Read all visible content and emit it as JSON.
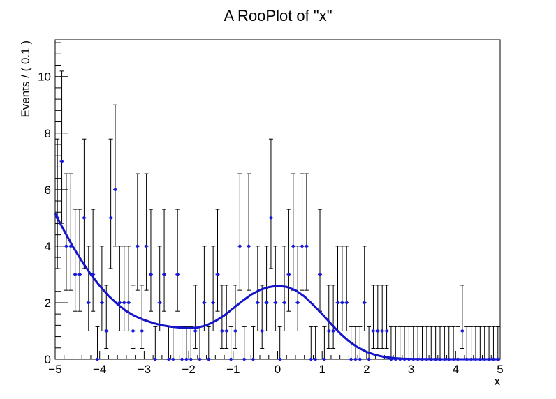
{
  "chart_data": {
    "type": "scatter",
    "title": "A RooPlot of \"x\"",
    "xlabel": "x",
    "ylabel": "Events / ( 0.1 )",
    "xlim": [
      -5,
      5
    ],
    "ylim": [
      0,
      11.3
    ],
    "x_ticks": [
      -5,
      -4,
      -3,
      -2,
      -1,
      0,
      1,
      2,
      3,
      4,
      5
    ],
    "y_ticks": [
      0,
      2,
      4,
      6,
      8,
      10
    ],
    "x_tick_labels": [
      "−5",
      "−4",
      "−3",
      "−2",
      "−1",
      "0",
      "1",
      "2",
      "3",
      "4",
      "5"
    ],
    "y_tick_labels": [
      "0",
      "2",
      "4",
      "6",
      "8",
      "10"
    ],
    "grid": false,
    "legend": "none",
    "colors": {
      "data": "#1a1ad6",
      "errorbar": "#000000",
      "curve": "#1414c8",
      "frame": "#000000"
    },
    "series": [
      {
        "type": "points_with_errors",
        "x_centers": [
          -4.95,
          -4.85,
          -4.75,
          -4.65,
          -4.55,
          -4.45,
          -4.35,
          -4.25,
          -4.15,
          -4.05,
          -3.95,
          -3.85,
          -3.75,
          -3.65,
          -3.55,
          -3.45,
          -3.35,
          -3.25,
          -3.15,
          -3.05,
          -2.95,
          -2.85,
          -2.75,
          -2.65,
          -2.55,
          -2.45,
          -2.35,
          -2.25,
          -2.15,
          -2.05,
          -1.95,
          -1.85,
          -1.75,
          -1.65,
          -1.55,
          -1.45,
          -1.35,
          -1.25,
          -1.15,
          -1.05,
          -0.95,
          -0.85,
          -0.75,
          -0.65,
          -0.55,
          -0.45,
          -0.35,
          -0.25,
          -0.15,
          -0.05,
          0.05,
          0.15,
          0.25,
          0.35,
          0.45,
          0.55,
          0.65,
          0.75,
          0.85,
          0.95,
          1.05,
          1.15,
          1.25,
          1.35,
          1.45,
          1.55,
          1.65,
          1.75,
          1.85,
          1.95,
          2.05,
          2.15,
          2.25,
          2.35,
          2.45,
          2.55,
          2.65,
          2.75,
          2.85,
          2.95,
          3.05,
          3.15,
          3.25,
          3.35,
          3.45,
          3.55,
          3.65,
          3.75,
          3.85,
          3.95,
          4.05,
          4.15,
          4.25,
          4.35,
          4.45,
          4.55,
          4.65,
          4.75,
          4.85,
          4.95
        ],
        "counts": [
          5,
          7,
          4,
          4,
          3,
          3,
          5,
          2,
          3,
          0,
          2,
          1,
          5,
          6,
          2,
          2,
          2,
          1,
          4,
          1,
          4,
          3,
          0,
          2,
          3,
          0,
          0,
          3,
          0,
          0,
          0,
          1,
          0,
          2,
          0,
          2,
          3,
          1,
          1,
          0,
          1,
          4,
          0,
          4,
          0,
          2,
          1,
          2,
          5,
          2,
          0,
          2,
          3,
          4,
          2,
          4,
          4,
          0,
          0,
          3,
          0,
          1,
          1,
          2,
          2,
          2,
          0,
          0,
          0,
          2,
          0,
          1,
          1,
          1,
          1,
          0,
          0,
          0,
          0,
          0,
          0,
          0,
          0,
          0,
          0,
          0,
          0,
          0,
          0,
          0,
          0,
          1,
          0,
          0,
          0,
          0,
          0,
          0,
          0,
          0
        ]
      },
      {
        "type": "curve",
        "x": [
          -5.0,
          -4.8,
          -4.6,
          -4.4,
          -4.2,
          -4.0,
          -3.8,
          -3.6,
          -3.4,
          -3.2,
          -3.0,
          -2.8,
          -2.6,
          -2.4,
          -2.2,
          -2.0,
          -1.8,
          -1.6,
          -1.4,
          -1.2,
          -1.0,
          -0.8,
          -0.6,
          -0.4,
          -0.2,
          0.0,
          0.2,
          0.4,
          0.6,
          0.8,
          1.0,
          1.2,
          1.4,
          1.6,
          1.8,
          2.0,
          2.2,
          2.4,
          2.6,
          2.8,
          3.0,
          3.2,
          3.4,
          3.6,
          3.8,
          4.0,
          4.2,
          4.4,
          4.6,
          4.8,
          5.0
        ],
        "y": [
          5.15,
          4.55,
          3.98,
          3.47,
          3.0,
          2.6,
          2.24,
          1.95,
          1.7,
          1.52,
          1.39,
          1.28,
          1.2,
          1.15,
          1.12,
          1.1,
          1.12,
          1.2,
          1.35,
          1.55,
          1.8,
          2.05,
          2.28,
          2.45,
          2.55,
          2.6,
          2.56,
          2.44,
          2.22,
          1.92,
          1.6,
          1.25,
          0.92,
          0.64,
          0.42,
          0.26,
          0.15,
          0.08,
          0.04,
          0.02,
          0.01,
          0.005,
          0.002,
          0.001,
          0.0,
          0.0,
          0.0,
          0.0,
          0.0,
          0.0,
          0.0
        ]
      }
    ]
  }
}
